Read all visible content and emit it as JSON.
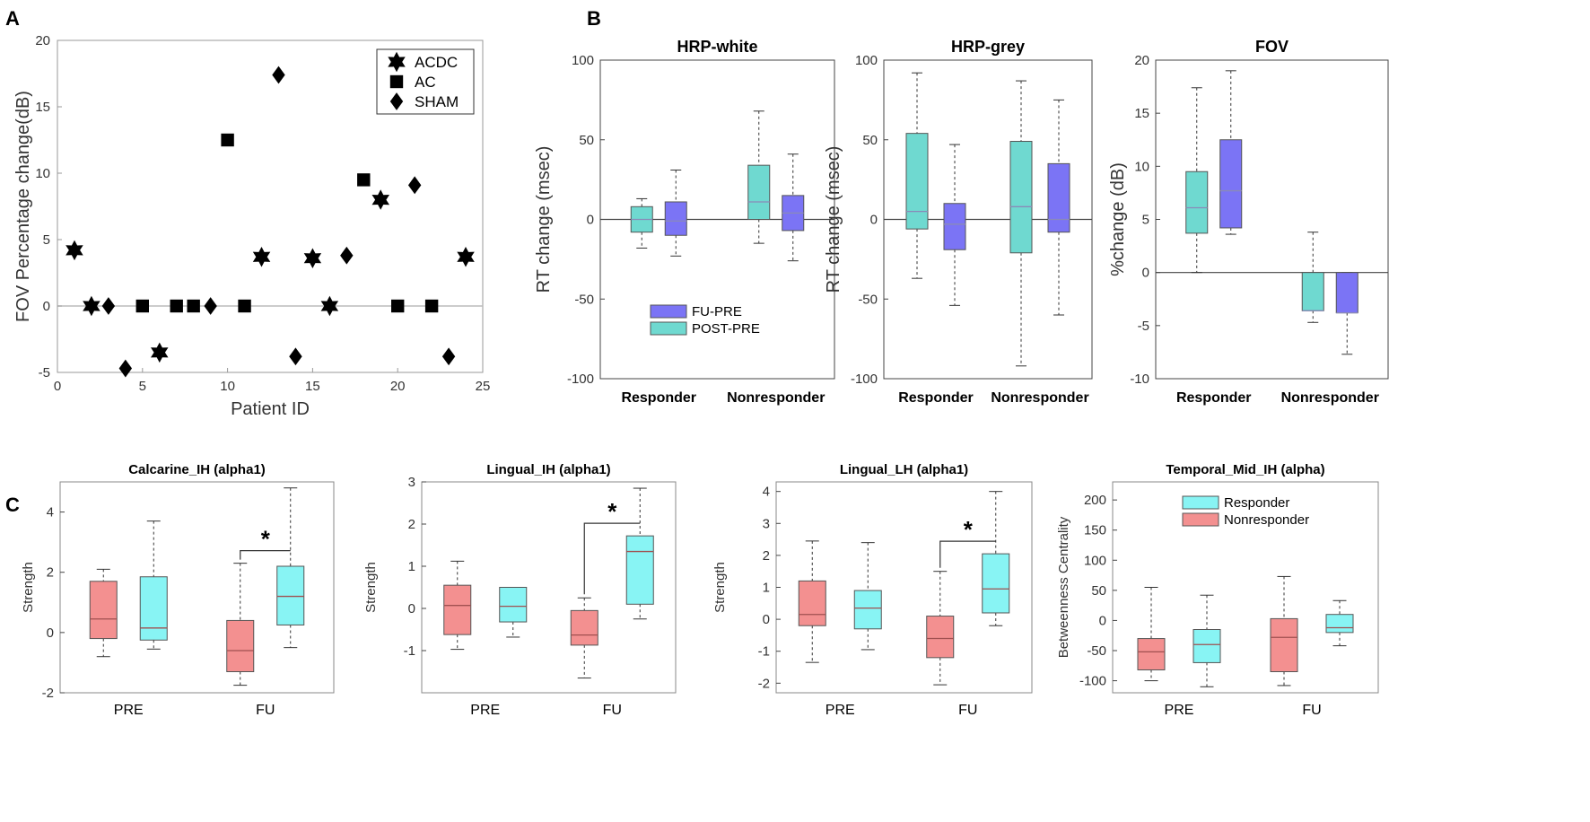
{
  "colors": {
    "fu_pre": "#7b74f5",
    "post_pre": "#6fd9d0",
    "responder_c": "#88f4f4",
    "nonresponder_c": "#f39090"
  },
  "chart_data": [
    {
      "panel": "A",
      "type": "scatter",
      "xlabel": "Patient ID",
      "ylabel": "FOV Percentage change(dB)",
      "xlim": [
        0,
        25
      ],
      "ylim": [
        -5,
        20
      ],
      "xticks": [
        "0",
        "5",
        "10",
        "15",
        "20",
        "25"
      ],
      "yticks": [
        "-5",
        "0",
        "5",
        "10",
        "15",
        "20"
      ],
      "legend": [
        "ACDC",
        "AC",
        "SHAM"
      ],
      "series": [
        {
          "name": "ACDC",
          "marker": "star",
          "points": [
            [
              1,
              4.2
            ],
            [
              2,
              0
            ],
            [
              6,
              -3.5
            ],
            [
              12,
              3.7
            ],
            [
              15,
              3.6
            ],
            [
              16,
              0
            ],
            [
              19,
              8.0
            ],
            [
              24,
              3.7
            ]
          ]
        },
        {
          "name": "AC",
          "marker": "square",
          "points": [
            [
              5,
              0
            ],
            [
              7,
              0
            ],
            [
              8,
              0
            ],
            [
              10,
              12.5
            ],
            [
              11,
              0
            ],
            [
              18,
              9.5
            ],
            [
              20,
              0
            ],
            [
              22,
              0
            ]
          ]
        },
        {
          "name": "SHAM",
          "marker": "diamond",
          "points": [
            [
              3,
              0
            ],
            [
              4,
              -4.7
            ],
            [
              9,
              0
            ],
            [
              13,
              17.4
            ],
            [
              14,
              -3.8
            ],
            [
              17,
              3.8
            ],
            [
              21,
              9.1
            ],
            [
              23,
              -3.8
            ]
          ]
        }
      ]
    },
    {
      "panel": "B1",
      "type": "box",
      "title": "HRP-white",
      "ylabel": "RT change (msec)",
      "ylim": [
        -100,
        100
      ],
      "yticks": [
        "-100",
        "-50",
        "0",
        "50",
        "100"
      ],
      "categories": [
        "Responder",
        "Nonresponder"
      ],
      "legend": [
        "FU-PRE",
        "POST-PRE"
      ],
      "boxes": [
        {
          "series": "POST-PRE",
          "category": "Responder",
          "whislo": -18,
          "q1": -8,
          "med": 0,
          "q3": 8,
          "whishi": 13
        },
        {
          "series": "FU-PRE",
          "category": "Responder",
          "whislo": -23,
          "q1": -10,
          "med": -1,
          "q3": 11,
          "whishi": 31
        },
        {
          "series": "POST-PRE",
          "category": "Nonresponder",
          "whislo": -15,
          "q1": 0,
          "med": 11,
          "q3": 34,
          "whishi": 68
        },
        {
          "series": "FU-PRE",
          "category": "Nonresponder",
          "whislo": -26,
          "q1": -7,
          "med": 4,
          "q3": 15,
          "whishi": 41
        }
      ]
    },
    {
      "panel": "B2",
      "type": "box",
      "title": "HRP-grey",
      "ylabel": "RT change (msec)",
      "ylim": [
        -100,
        100
      ],
      "yticks": [
        "-100",
        "-50",
        "0",
        "50",
        "100"
      ],
      "categories": [
        "Responder",
        "Nonresponder"
      ],
      "boxes": [
        {
          "series": "POST-PRE",
          "category": "Responder",
          "whislo": -37,
          "q1": -6,
          "med": 5,
          "q3": 54,
          "whishi": 92
        },
        {
          "series": "FU-PRE",
          "category": "Responder",
          "whislo": -54,
          "q1": -19,
          "med": -3,
          "q3": 10,
          "whishi": 47
        },
        {
          "series": "POST-PRE",
          "category": "Nonresponder",
          "whislo": -92,
          "q1": -21,
          "med": 8,
          "q3": 49,
          "whishi": 87
        },
        {
          "series": "FU-PRE",
          "category": "Nonresponder",
          "whislo": -60,
          "q1": -8,
          "med": 0,
          "q3": 35,
          "whishi": 75
        }
      ]
    },
    {
      "panel": "B3",
      "type": "box",
      "title": "FOV",
      "ylabel": "%change (dB)",
      "ylim": [
        -10,
        20
      ],
      "yticks": [
        "-10",
        "-5",
        "0",
        "5",
        "10",
        "15",
        "20"
      ],
      "categories": [
        "Responder",
        "Nonresponder"
      ],
      "boxes": [
        {
          "series": "POST-PRE",
          "category": "Responder",
          "whislo": 0,
          "q1": 3.7,
          "med": 6.1,
          "q3": 9.5,
          "whishi": 17.4
        },
        {
          "series": "FU-PRE",
          "category": "Responder",
          "whislo": 3.6,
          "q1": 4.2,
          "med": 7.7,
          "q3": 12.5,
          "whishi": 19.0
        },
        {
          "series": "POST-PRE",
          "category": "Nonresponder",
          "whislo": -4.7,
          "q1": -3.6,
          "med": -3.6,
          "q3": 0,
          "whishi": 3.8
        },
        {
          "series": "FU-PRE",
          "category": "Nonresponder",
          "whislo": -7.7,
          "q1": -3.8,
          "med": -3.8,
          "q3": 0,
          "whishi": 0
        }
      ]
    },
    {
      "panel": "C1",
      "type": "box",
      "title": "Calcarine_IH (alpha1)",
      "ylabel": "Strength",
      "ylim": [
        -2,
        5
      ],
      "yticks": [
        "-2",
        "0",
        "2",
        "4"
      ],
      "categories": [
        "PRE",
        "FU"
      ],
      "significance": {
        "category": "FU",
        "label": "*"
      },
      "boxes": [
        {
          "series": "Nonresponder",
          "category": "PRE",
          "whislo": -0.8,
          "q1": -0.2,
          "med": 0.45,
          "q3": 1.7,
          "whishi": 2.1
        },
        {
          "series": "Responder",
          "category": "PRE",
          "whislo": -0.55,
          "q1": -0.25,
          "med": 0.15,
          "q3": 1.85,
          "whishi": 3.7
        },
        {
          "series": "Nonresponder",
          "category": "FU",
          "whislo": -1.75,
          "q1": -1.3,
          "med": -0.6,
          "q3": 0.4,
          "whishi": 2.3
        },
        {
          "series": "Responder",
          "category": "FU",
          "whislo": -0.5,
          "q1": 0.25,
          "med": 1.2,
          "q3": 2.2,
          "whishi": 4.8
        }
      ]
    },
    {
      "panel": "C2",
      "type": "box",
      "title": "Lingual_IH (alpha1)",
      "ylabel": "Strength",
      "ylim": [
        -2,
        3
      ],
      "yticks": [
        "-1",
        "0",
        "1",
        "2",
        "3"
      ],
      "categories": [
        "PRE",
        "FU"
      ],
      "significance": {
        "category": "FU",
        "label": "*"
      },
      "boxes": [
        {
          "series": "Nonresponder",
          "category": "PRE",
          "whislo": -0.97,
          "q1": -0.62,
          "med": 0.07,
          "q3": 0.55,
          "whishi": 1.12
        },
        {
          "series": "Responder",
          "category": "PRE",
          "whislo": -0.68,
          "q1": -0.32,
          "med": 0.05,
          "q3": 0.5,
          "whishi": 0.5
        },
        {
          "series": "Nonresponder",
          "category": "FU",
          "whislo": -1.65,
          "q1": -0.87,
          "med": -0.63,
          "q3": -0.05,
          "whishi": 0.25
        },
        {
          "series": "Responder",
          "category": "FU",
          "whislo": -0.25,
          "q1": 0.1,
          "med": 1.35,
          "q3": 1.72,
          "whishi": 2.85
        }
      ]
    },
    {
      "panel": "C3",
      "type": "box",
      "title": "Lingual_LH (alpha1)",
      "ylabel": "Strength",
      "ylim": [
        -2.3,
        4.3
      ],
      "yticks": [
        "-2",
        "-1",
        "0",
        "1",
        "2",
        "3",
        "4"
      ],
      "categories": [
        "PRE",
        "FU"
      ],
      "significance": {
        "category": "FU",
        "label": "*"
      },
      "boxes": [
        {
          "series": "Nonresponder",
          "category": "PRE",
          "whislo": -1.35,
          "q1": -0.2,
          "med": 0.15,
          "q3": 1.2,
          "whishi": 2.45
        },
        {
          "series": "Responder",
          "category": "PRE",
          "whislo": -0.95,
          "q1": -0.3,
          "med": 0.35,
          "q3": 0.9,
          "whishi": 2.4
        },
        {
          "series": "Nonresponder",
          "category": "FU",
          "whislo": -2.05,
          "q1": -1.2,
          "med": -0.6,
          "q3": 0.1,
          "whishi": 1.5
        },
        {
          "series": "Responder",
          "category": "FU",
          "whislo": -0.2,
          "q1": 0.2,
          "med": 0.95,
          "q3": 2.05,
          "whishi": 4.0
        }
      ]
    },
    {
      "panel": "C4",
      "type": "box",
      "title": "Temporal_Mid_IH (alpha)",
      "ylabel": "Betweenness Centrality",
      "ylim": [
        -120,
        230
      ],
      "yticks": [
        "-100",
        "-50",
        "0",
        "50",
        "100",
        "150",
        "200"
      ],
      "categories": [
        "PRE",
        "FU"
      ],
      "legend": [
        "Responder",
        "Nonresponder"
      ],
      "boxes": [
        {
          "series": "Nonresponder",
          "category": "PRE",
          "whislo": -100,
          "q1": -82,
          "med": -52,
          "q3": -30,
          "whishi": 55
        },
        {
          "series": "Responder",
          "category": "PRE",
          "whislo": -110,
          "q1": -70,
          "med": -40,
          "q3": -15,
          "whishi": 42
        },
        {
          "series": "Nonresponder",
          "category": "FU",
          "whislo": -108,
          "q1": -85,
          "med": -28,
          "q3": 3,
          "whishi": 73
        },
        {
          "series": "Responder",
          "category": "FU",
          "whislo": -42,
          "q1": -20,
          "med": -12,
          "q3": 10,
          "whishi": 33
        }
      ]
    }
  ]
}
